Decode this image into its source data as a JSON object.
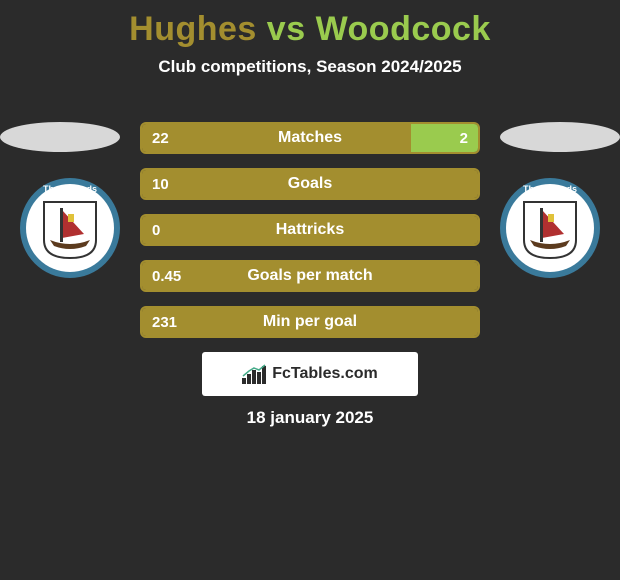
{
  "title_parts": {
    "p1": "Hughes",
    "vs": "vs",
    "p2": "Woodcock"
  },
  "title_colors": {
    "p1": "#a38e2f",
    "vs": "#9acb4e",
    "p2": "#9acb4e"
  },
  "subtitle": "Club competitions, Season 2024/2025",
  "date": "18 january 2025",
  "attribution": "FcTables.com",
  "brand_colors": {
    "olive": "#a38e2f",
    "green": "#9acb4e",
    "bg": "#2b2b2b",
    "ellipse": "#d8d8d8",
    "badge_ring": "#3a7a9b",
    "text": "#ffffff"
  },
  "badges": {
    "left": {
      "ring_text": "The Nomads",
      "shield_bg": "#ffffff",
      "sail": "#b03030",
      "flag": "#e0c23a",
      "hull": "#5c3b1e"
    },
    "right": {
      "ring_text": "The Nomads",
      "shield_bg": "#ffffff",
      "sail": "#b03030",
      "flag": "#e0c23a",
      "hull": "#5c3b1e"
    }
  },
  "bars": [
    {
      "label": "Matches",
      "left_val": "22",
      "right_val": "2",
      "left_pct": 80,
      "right_pct": 20,
      "left_color": "#a38e2f",
      "right_color": "#9acb4e",
      "border_color": "#a38e2f"
    },
    {
      "label": "Goals",
      "left_val": "10",
      "right_val": "",
      "left_pct": 100,
      "right_pct": 0,
      "left_color": "#a38e2f",
      "right_color": "#9acb4e",
      "border_color": "#a38e2f"
    },
    {
      "label": "Hattricks",
      "left_val": "0",
      "right_val": "",
      "left_pct": 100,
      "right_pct": 0,
      "left_color": "#a38e2f",
      "right_color": "#9acb4e",
      "border_color": "#a38e2f"
    },
    {
      "label": "Goals per match",
      "left_val": "0.45",
      "right_val": "",
      "left_pct": 100,
      "right_pct": 0,
      "left_color": "#a38e2f",
      "right_color": "#9acb4e",
      "border_color": "#a38e2f"
    },
    {
      "label": "Min per goal",
      "left_val": "231",
      "right_val": "",
      "left_pct": 100,
      "right_pct": 0,
      "left_color": "#a38e2f",
      "right_color": "#9acb4e",
      "border_color": "#a38e2f"
    }
  ]
}
